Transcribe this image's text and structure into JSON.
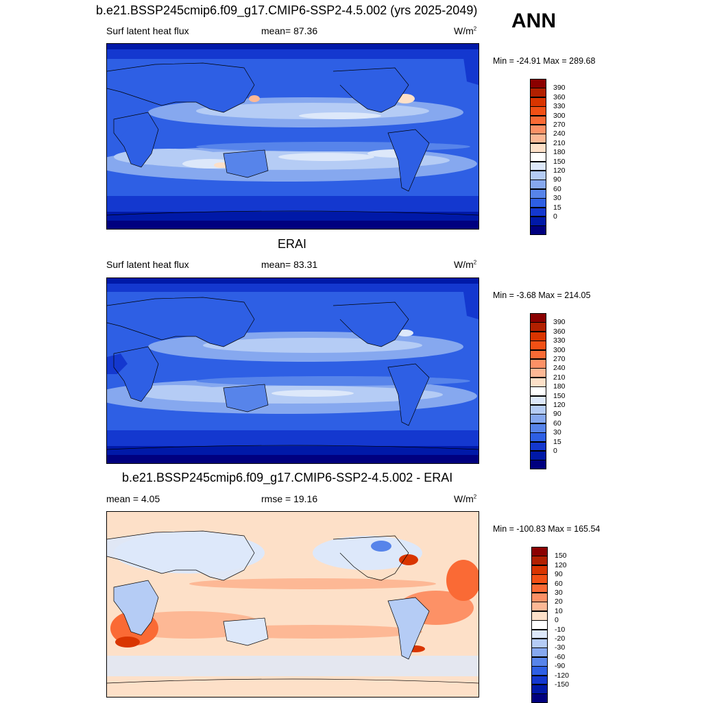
{
  "header": {
    "main_title": "b.e21.BSSP245cmip6.f09_g17.CMIP6-SSP2-4.5.002 (yrs 2025-2049)",
    "season": "ANN"
  },
  "panels": [
    {
      "title": "",
      "variable": "Surf latent heat flux",
      "stat": "mean=  87.36",
      "units": "W/m",
      "units_exp": "2",
      "minmax": "Min = -24.91 Max = 289.68",
      "colorbar": {
        "ticks": [
          "390",
          "360",
          "330",
          "300",
          "270",
          "240",
          "210",
          "180",
          "150",
          "120",
          "90",
          "60",
          "30",
          "15",
          "0"
        ],
        "colors": [
          "#8b0000",
          "#b22000",
          "#d93500",
          "#f25015",
          "#fa6a35",
          "#fd9166",
          "#fdb895",
          "#fde0c8",
          "#ffffff",
          "#dde8fa",
          "#b5ccf5",
          "#86a8ef",
          "#5784ea",
          "#2e5fe4",
          "#1438cf",
          "#0019a8",
          "#00007f"
        ]
      }
    },
    {
      "title": "ERAI",
      "variable": "Surf latent heat flux",
      "stat": "mean=  83.31",
      "units": "W/m",
      "units_exp": "2",
      "minmax": "Min =  -3.68 Max = 214.05",
      "colorbar": {
        "ticks": [
          "390",
          "360",
          "330",
          "300",
          "270",
          "240",
          "210",
          "180",
          "150",
          "120",
          "90",
          "60",
          "30",
          "15",
          "0"
        ],
        "colors": [
          "#8b0000",
          "#b22000",
          "#d93500",
          "#f25015",
          "#fa6a35",
          "#fd9166",
          "#fdb895",
          "#fde0c8",
          "#ffffff",
          "#dde8fa",
          "#b5ccf5",
          "#86a8ef",
          "#5784ea",
          "#2e5fe4",
          "#1438cf",
          "#0019a8",
          "#00007f"
        ]
      }
    },
    {
      "title": "b.e21.BSSP245cmip6.f09_g17.CMIP6-SSP2-4.5.002 - ERAI",
      "variable": "mean =   4.05",
      "stat": "rmse =  19.16",
      "units": "W/m",
      "units_exp": "2",
      "minmax": "Min = -100.83 Max = 165.54",
      "colorbar": {
        "ticks": [
          "150",
          "120",
          "90",
          "60",
          "30",
          "20",
          "10",
          "0",
          "-10",
          "-20",
          "-30",
          "-60",
          "-90",
          "-120",
          "-150"
        ],
        "colors": [
          "#8b0000",
          "#b22000",
          "#d93500",
          "#f25015",
          "#fa6a35",
          "#fd9166",
          "#fdb895",
          "#fde0c8",
          "#ffffff",
          "#dde8fa",
          "#b5ccf5",
          "#86a8ef",
          "#5784ea",
          "#2e5fe4",
          "#1438cf",
          "#0019a8",
          "#00007f"
        ]
      }
    }
  ]
}
